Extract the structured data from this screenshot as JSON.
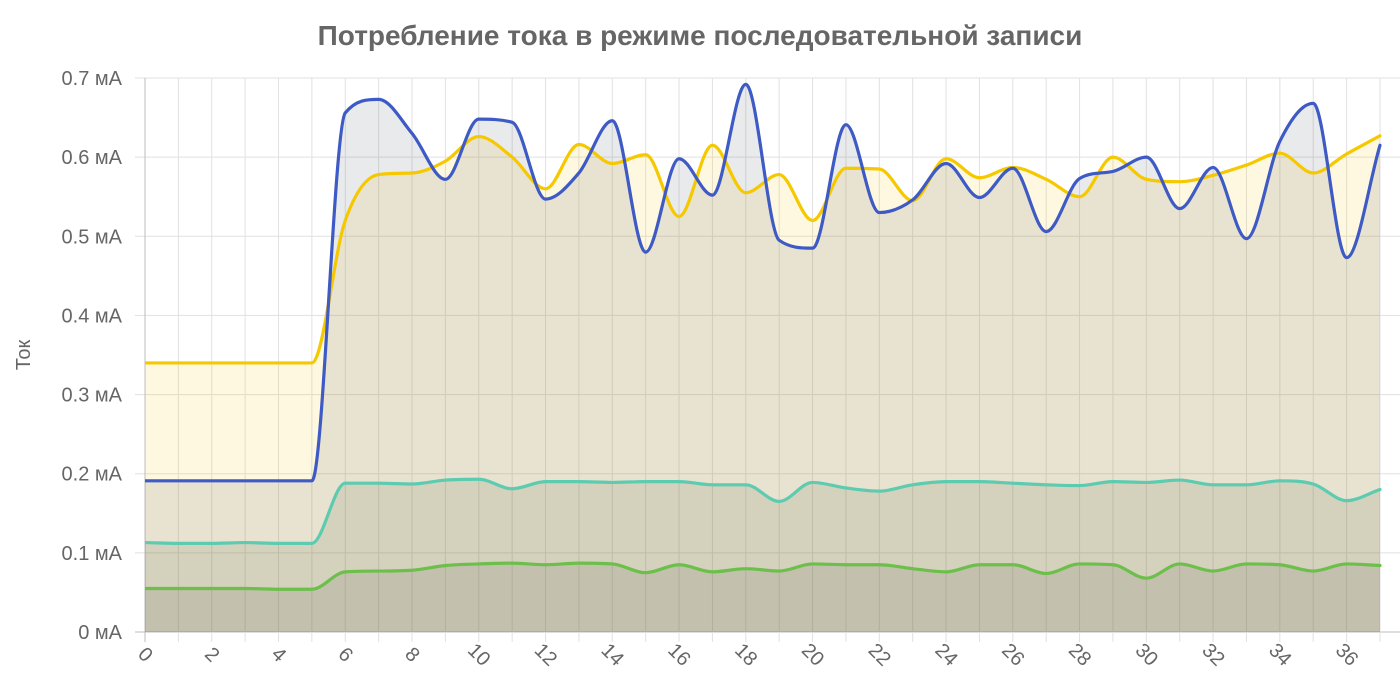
{
  "chart_data": {
    "type": "line",
    "title": "Потребление тока в режиме последовательной записи",
    "xlabel": "",
    "ylabel": "Ток",
    "ylim": [
      0,
      0.7
    ],
    "xlim": [
      0,
      37.6
    ],
    "y_ticks": [
      "0 мА",
      "0.1 мА",
      "0.2 мА",
      "0.3 мА",
      "0.4 мА",
      "0.5 мА",
      "0.6 мА",
      "0.7 мА"
    ],
    "x_ticks": [
      "0",
      "2",
      "4",
      "6",
      "8",
      "10",
      "12",
      "14",
      "16",
      "18",
      "20",
      "22",
      "24",
      "26",
      "28",
      "30",
      "32",
      "34",
      "36"
    ],
    "grid": true,
    "x": [
      0,
      1,
      2,
      3,
      4,
      5,
      6,
      7,
      8,
      9,
      10,
      11,
      12,
      13,
      14,
      15,
      16,
      17,
      18,
      19,
      20,
      21,
      22,
      23,
      24,
      25,
      26,
      27,
      28,
      29,
      30,
      31,
      32,
      33,
      34,
      35,
      36,
      37
    ],
    "series": [
      {
        "color": "#f5c800",
        "fill": "rgba(245,200,0,0.12)",
        "values": [
          0.34,
          0.34,
          0.34,
          0.34,
          0.34,
          0.34,
          0.52,
          0.578,
          0.58,
          0.595,
          0.626,
          0.6,
          0.56,
          0.616,
          0.592,
          0.603,
          0.525,
          0.615,
          0.555,
          0.578,
          0.52,
          0.586,
          0.585,
          0.545,
          0.598,
          0.574,
          0.587,
          0.572,
          0.55,
          0.6,
          0.572,
          0.569,
          0.577,
          0.59,
          0.605,
          0.58,
          0.604,
          0.627
        ]
      },
      {
        "color": "#3d5ac5",
        "fill": "rgba(70,85,95,0.12)",
        "values": [
          0.191,
          0.191,
          0.191,
          0.191,
          0.191,
          0.191,
          0.656,
          0.673,
          0.63,
          0.572,
          0.648,
          0.644,
          0.547,
          0.58,
          0.646,
          0.48,
          0.598,
          0.552,
          0.692,
          0.495,
          0.485,
          0.641,
          0.53,
          0.546,
          0.592,
          0.549,
          0.586,
          0.506,
          0.573,
          0.582,
          0.6,
          0.535,
          0.587,
          0.497,
          0.62,
          0.668,
          0.473,
          0.615
        ]
      },
      {
        "color": "#5ccbb0",
        "fill": "rgba(70,85,60,0.12)",
        "values": [
          0.113,
          0.112,
          0.112,
          0.113,
          0.112,
          0.112,
          0.188,
          0.188,
          0.187,
          0.192,
          0.193,
          0.181,
          0.19,
          0.19,
          0.189,
          0.19,
          0.19,
          0.186,
          0.186,
          0.165,
          0.189,
          0.182,
          0.178,
          0.186,
          0.19,
          0.19,
          0.188,
          0.186,
          0.185,
          0.19,
          0.189,
          0.192,
          0.186,
          0.186,
          0.191,
          0.187,
          0.166,
          0.18
        ]
      },
      {
        "color": "#6cbf4a",
        "fill": "rgba(70,85,60,0.12)",
        "values": [
          0.055,
          0.055,
          0.055,
          0.055,
          0.054,
          0.054,
          0.076,
          0.077,
          0.078,
          0.084,
          0.086,
          0.087,
          0.085,
          0.087,
          0.086,
          0.075,
          0.085,
          0.076,
          0.08,
          0.077,
          0.086,
          0.085,
          0.085,
          0.08,
          0.076,
          0.085,
          0.085,
          0.074,
          0.086,
          0.085,
          0.068,
          0.086,
          0.077,
          0.086,
          0.085,
          0.077,
          0.086,
          0.084
        ]
      }
    ]
  }
}
